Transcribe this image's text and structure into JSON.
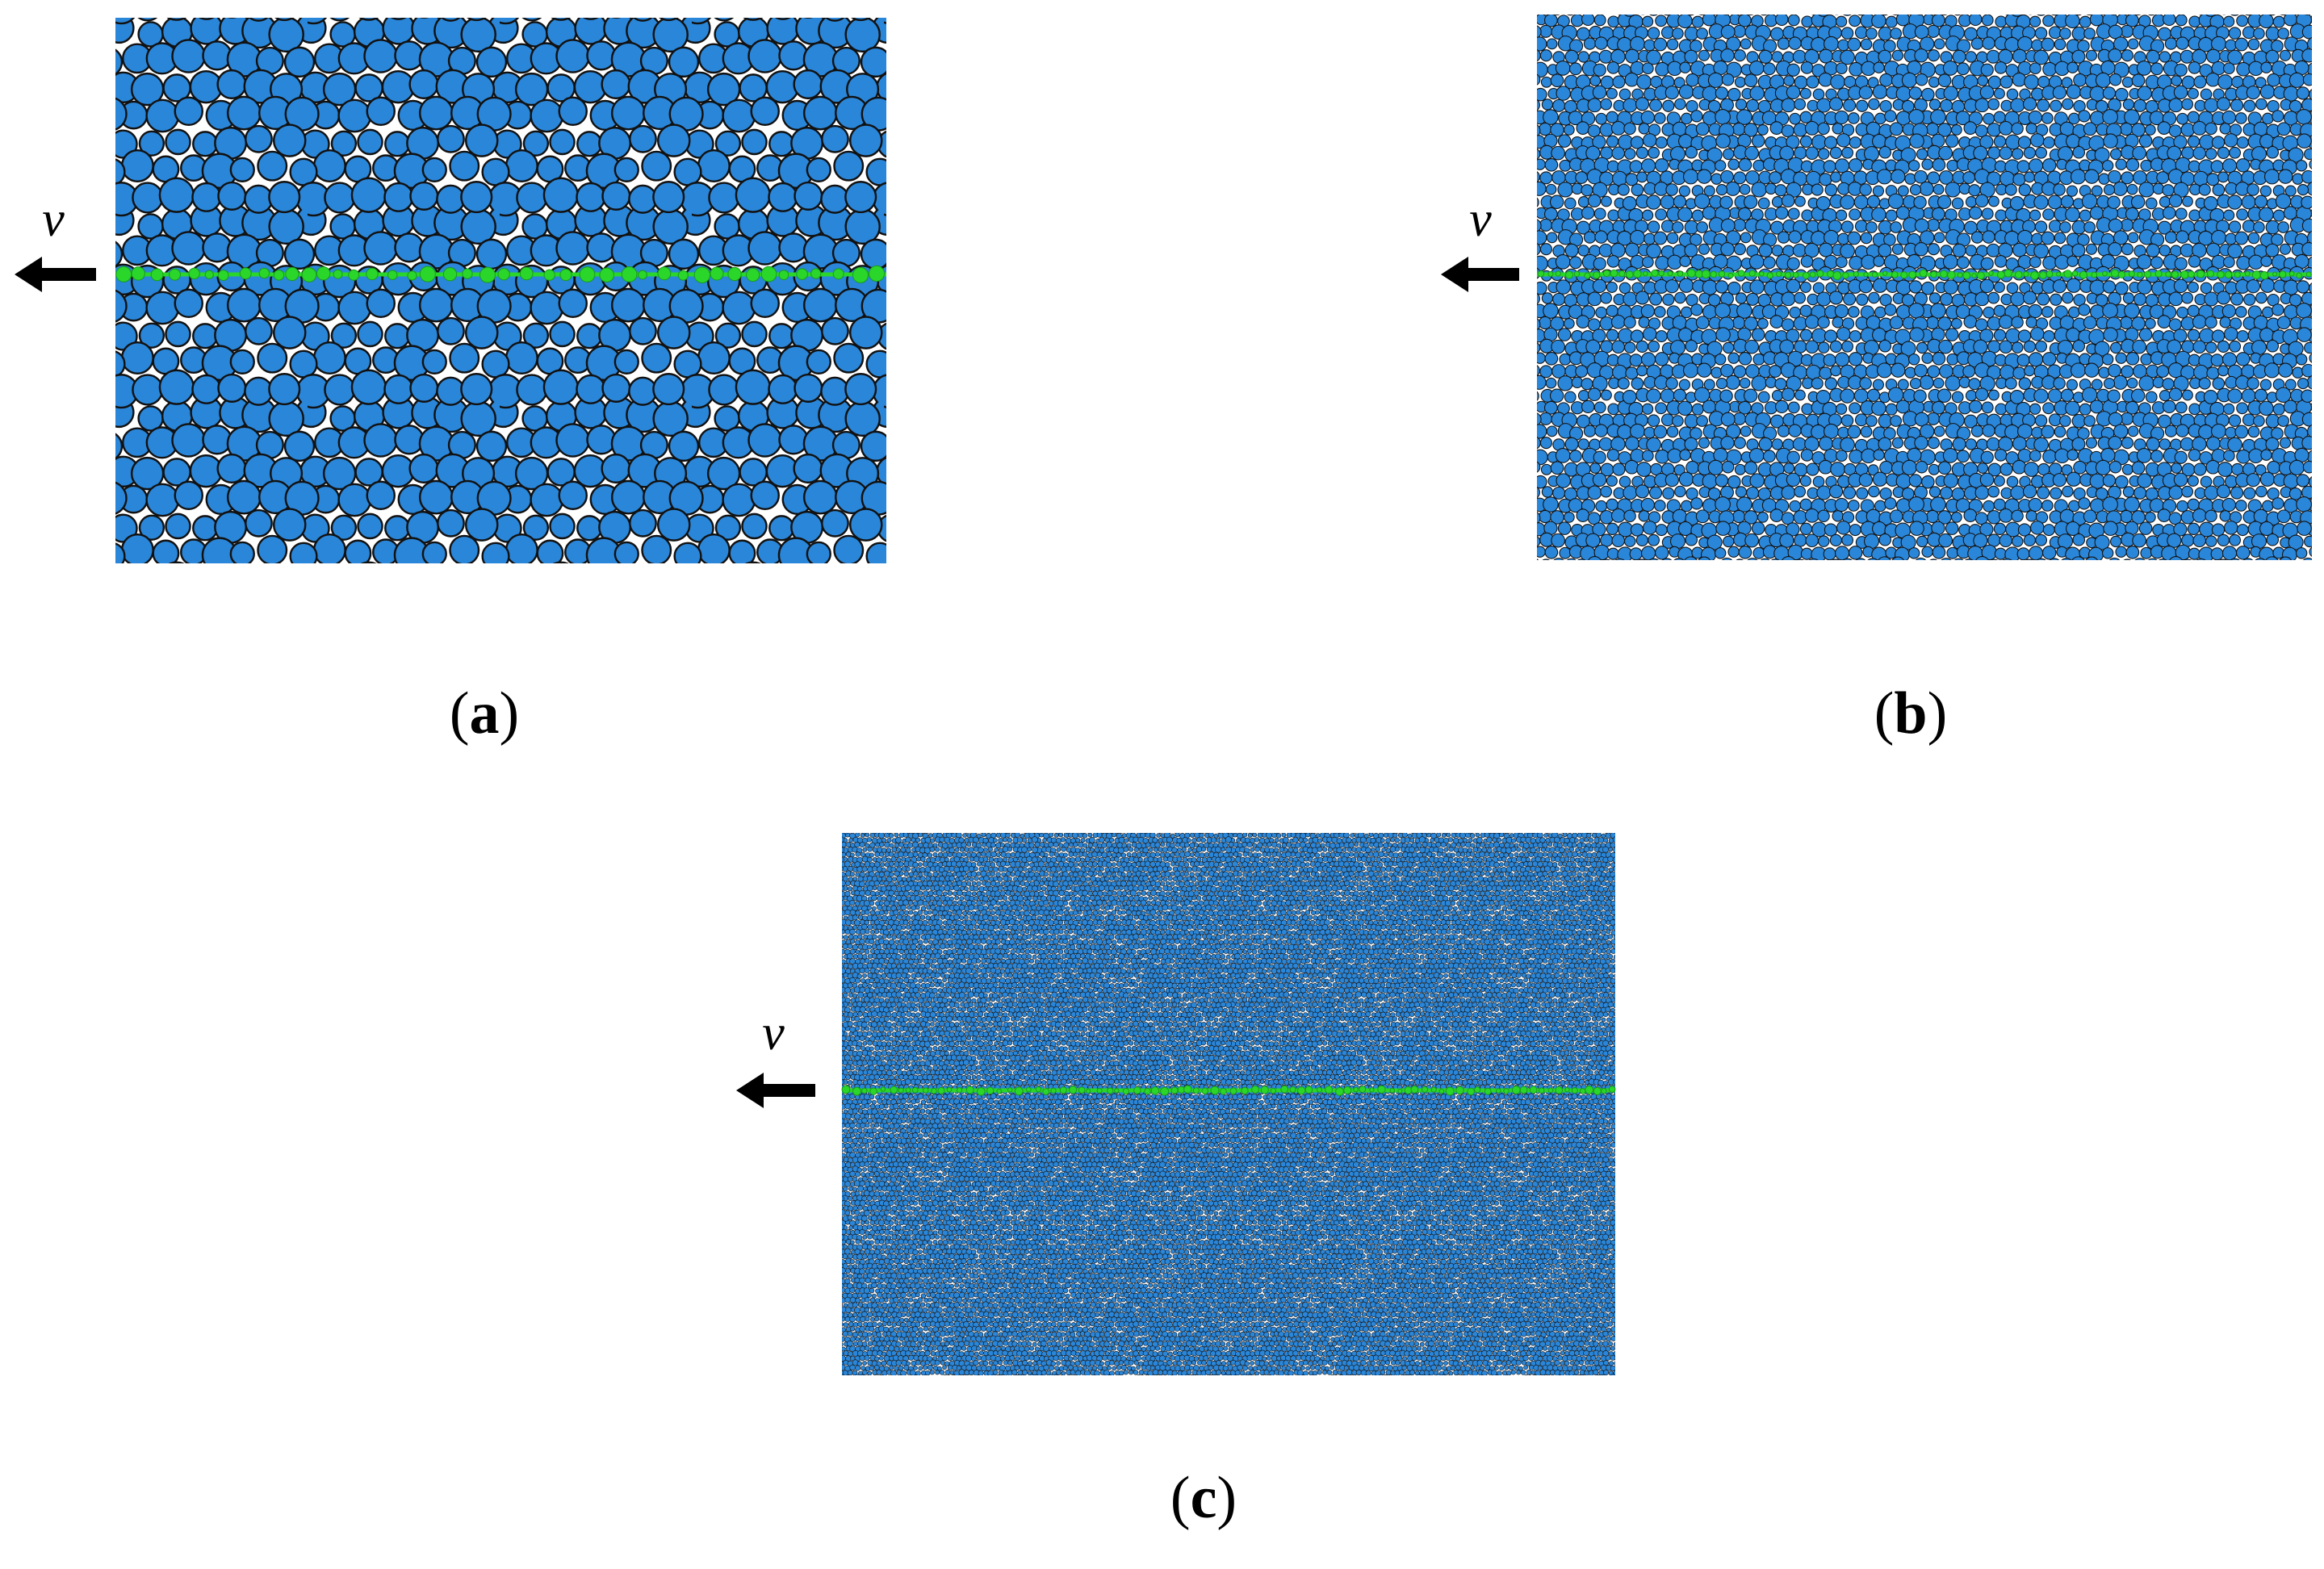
{
  "figure": {
    "panels": [
      {
        "label_open": "(",
        "label_letter": "a",
        "label_close": ")",
        "velocity_label": "v"
      },
      {
        "label_open": "(",
        "label_letter": "b",
        "label_close": ")",
        "velocity_label": "v"
      },
      {
        "label_open": "(",
        "label_letter": "c",
        "label_close": ")",
        "velocity_label": "v"
      }
    ]
  }
}
